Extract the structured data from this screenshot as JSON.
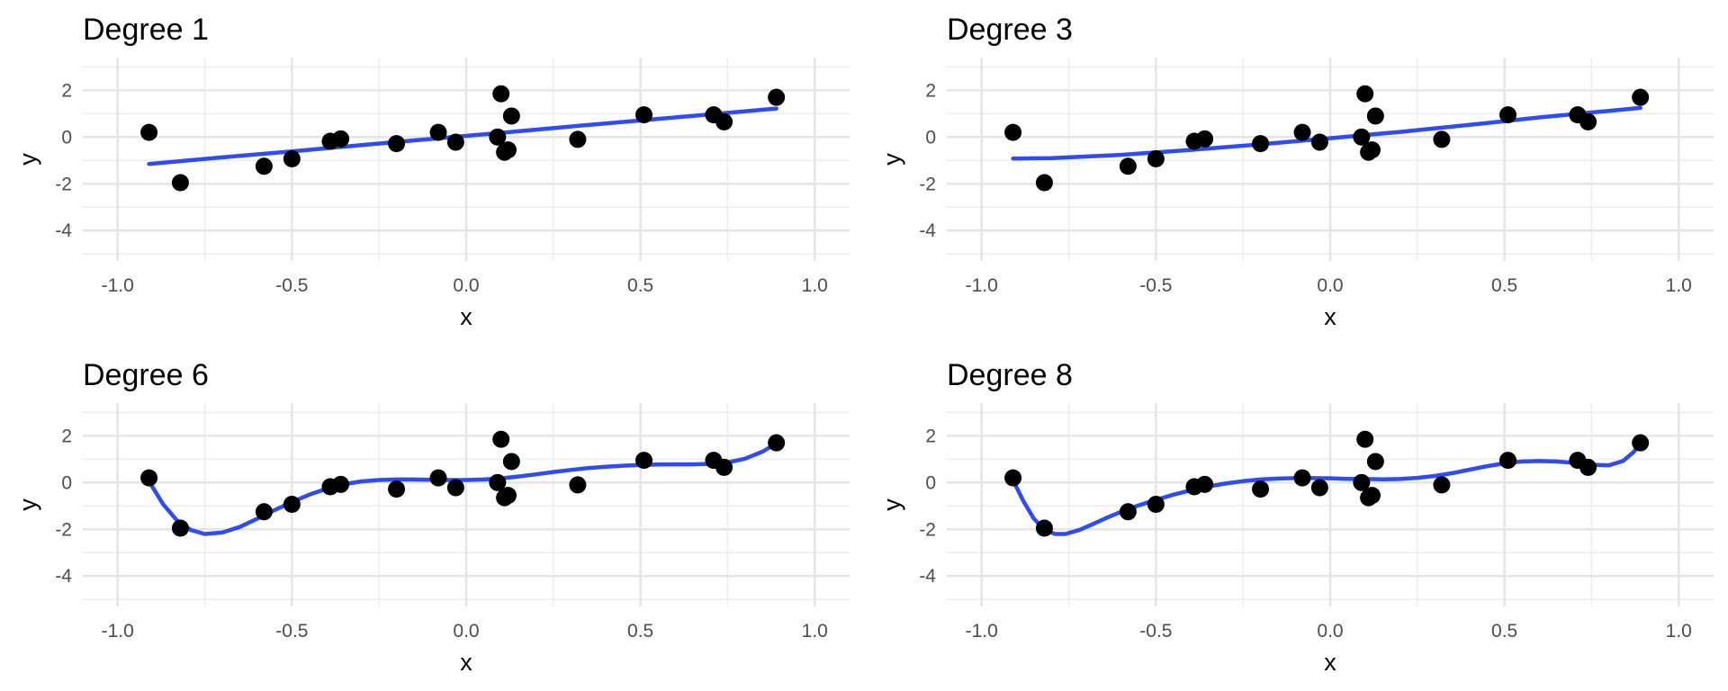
{
  "chart_data": [
    {
      "type": "scatter",
      "title": "Degree 1",
      "xlabel": "x",
      "ylabel": "y",
      "xlim": [
        -1.1,
        1.1
      ],
      "ylim": [
        -5.3,
        3.4
      ],
      "x_ticks": [
        -1.0,
        -0.5,
        0.0,
        0.5,
        1.0
      ],
      "x_tick_labels": [
        "-1.0",
        "-0.5",
        "0.0",
        "0.5",
        "1.0"
      ],
      "y_ticks": [
        -4,
        -2,
        0,
        2
      ],
      "y_tick_labels": [
        "-4",
        "-2",
        "0",
        "2"
      ],
      "grid": true,
      "points": {
        "x": [
          -0.91,
          -0.82,
          -0.58,
          -0.5,
          -0.39,
          -0.36,
          -0.2,
          -0.08,
          -0.03,
          0.09,
          0.1,
          0.11,
          0.12,
          0.13,
          0.32,
          0.51,
          0.71,
          0.74,
          0.89
        ],
        "y": [
          0.2,
          -1.95,
          -1.25,
          -0.93,
          -0.18,
          -0.08,
          -0.28,
          0.2,
          -0.22,
          0.0,
          1.85,
          -0.65,
          -0.55,
          0.9,
          -0.1,
          0.95,
          0.95,
          0.65,
          1.7
        ]
      },
      "fit": {
        "degree": 1,
        "x": [
          -0.91,
          -0.7,
          -0.5,
          -0.3,
          -0.1,
          0.1,
          0.3,
          0.5,
          0.7,
          0.89
        ],
        "y": [
          -1.15,
          -0.87,
          -0.61,
          -0.34,
          -0.08,
          0.18,
          0.45,
          0.71,
          0.97,
          1.22
        ]
      }
    },
    {
      "type": "scatter",
      "title": "Degree 3",
      "xlabel": "x",
      "ylabel": "y",
      "xlim": [
        -1.1,
        1.1
      ],
      "ylim": [
        -5.3,
        3.4
      ],
      "x_ticks": [
        -1.0,
        -0.5,
        0.0,
        0.5,
        1.0
      ],
      "x_tick_labels": [
        "-1.0",
        "-0.5",
        "0.0",
        "0.5",
        "1.0"
      ],
      "y_ticks": [
        -4,
        -2,
        0,
        2
      ],
      "y_tick_labels": [
        "-4",
        "-2",
        "0",
        "2"
      ],
      "grid": true,
      "points": {
        "x": [
          -0.91,
          -0.82,
          -0.58,
          -0.5,
          -0.39,
          -0.36,
          -0.2,
          -0.08,
          -0.03,
          0.09,
          0.1,
          0.11,
          0.12,
          0.13,
          0.32,
          0.51,
          0.71,
          0.74,
          0.89
        ],
        "y": [
          0.2,
          -1.95,
          -1.25,
          -0.93,
          -0.18,
          -0.08,
          -0.28,
          0.2,
          -0.22,
          0.0,
          1.85,
          -0.65,
          -0.55,
          0.9,
          -0.1,
          0.95,
          0.95,
          0.65,
          1.7
        ]
      },
      "fit": {
        "degree": 3,
        "x": [
          -0.91,
          -0.8,
          -0.6,
          -0.4,
          -0.2,
          0.0,
          0.2,
          0.4,
          0.6,
          0.8,
          0.89
        ],
        "y": [
          -0.92,
          -0.9,
          -0.76,
          -0.55,
          -0.31,
          -0.05,
          0.22,
          0.52,
          0.84,
          1.12,
          1.25
        ]
      }
    },
    {
      "type": "scatter",
      "title": "Degree 6",
      "xlabel": "x",
      "ylabel": "y",
      "xlim": [
        -1.1,
        1.1
      ],
      "ylim": [
        -5.3,
        3.4
      ],
      "x_ticks": [
        -1.0,
        -0.5,
        0.0,
        0.5,
        1.0
      ],
      "x_tick_labels": [
        "-1.0",
        "-0.5",
        "0.0",
        "0.5",
        "1.0"
      ],
      "y_ticks": [
        -4,
        -2,
        0,
        2
      ],
      "y_tick_labels": [
        "-4",
        "-2",
        "0",
        "2"
      ],
      "grid": true,
      "points": {
        "x": [
          -0.91,
          -0.82,
          -0.58,
          -0.5,
          -0.39,
          -0.36,
          -0.2,
          -0.08,
          -0.03,
          0.09,
          0.1,
          0.11,
          0.12,
          0.13,
          0.32,
          0.51,
          0.71,
          0.74,
          0.89
        ],
        "y": [
          0.2,
          -1.95,
          -1.25,
          -0.93,
          -0.18,
          -0.08,
          -0.28,
          0.2,
          -0.22,
          0.0,
          1.85,
          -0.65,
          -0.55,
          0.9,
          -0.1,
          0.95,
          0.95,
          0.65,
          1.7
        ]
      },
      "fit": {
        "degree": 6,
        "x": [
          -0.91,
          -0.87,
          -0.83,
          -0.79,
          -0.75,
          -0.7,
          -0.65,
          -0.6,
          -0.55,
          -0.5,
          -0.45,
          -0.4,
          -0.35,
          -0.3,
          -0.25,
          -0.2,
          -0.15,
          -0.1,
          -0.05,
          0.0,
          0.05,
          0.1,
          0.15,
          0.2,
          0.25,
          0.3,
          0.35,
          0.4,
          0.45,
          0.5,
          0.55,
          0.6,
          0.65,
          0.7,
          0.75,
          0.8,
          0.85,
          0.89
        ],
        "y": [
          0.05,
          -0.92,
          -1.62,
          -2.03,
          -2.2,
          -2.14,
          -1.9,
          -1.55,
          -1.18,
          -0.83,
          -0.52,
          -0.26,
          -0.07,
          0.05,
          0.11,
          0.13,
          0.13,
          0.12,
          0.11,
          0.11,
          0.13,
          0.18,
          0.26,
          0.35,
          0.45,
          0.54,
          0.62,
          0.68,
          0.72,
          0.75,
          0.77,
          0.78,
          0.78,
          0.8,
          0.86,
          1.02,
          1.32,
          1.68
        ]
      }
    },
    {
      "type": "scatter",
      "title": "Degree 8",
      "xlabel": "x",
      "ylabel": "y",
      "xlim": [
        -1.1,
        1.1
      ],
      "ylim": [
        -5.3,
        3.4
      ],
      "x_ticks": [
        -1.0,
        -0.5,
        0.0,
        0.5,
        1.0
      ],
      "x_tick_labels": [
        "-1.0",
        "-0.5",
        "0.0",
        "0.5",
        "1.0"
      ],
      "y_ticks": [
        -4,
        -2,
        0,
        2
      ],
      "y_tick_labels": [
        "-4",
        "-2",
        "0",
        "2"
      ],
      "grid": true,
      "points": {
        "x": [
          -0.91,
          -0.82,
          -0.58,
          -0.5,
          -0.39,
          -0.36,
          -0.2,
          -0.08,
          -0.03,
          0.09,
          0.1,
          0.11,
          0.12,
          0.13,
          0.32,
          0.51,
          0.71,
          0.74,
          0.89
        ],
        "y": [
          0.2,
          -1.95,
          -1.25,
          -0.93,
          -0.18,
          -0.08,
          -0.28,
          0.2,
          -0.22,
          0.0,
          1.85,
          -0.65,
          -0.55,
          0.9,
          -0.1,
          0.95,
          0.95,
          0.65,
          1.7
        ]
      },
      "fit": {
        "degree": 8,
        "x": [
          -0.91,
          -0.88,
          -0.85,
          -0.82,
          -0.79,
          -0.76,
          -0.72,
          -0.68,
          -0.64,
          -0.6,
          -0.55,
          -0.5,
          -0.45,
          -0.4,
          -0.35,
          -0.3,
          -0.25,
          -0.2,
          -0.15,
          -0.1,
          -0.05,
          0.0,
          0.05,
          0.1,
          0.15,
          0.2,
          0.25,
          0.3,
          0.35,
          0.4,
          0.45,
          0.5,
          0.55,
          0.6,
          0.65,
          0.7,
          0.75,
          0.8,
          0.84,
          0.87,
          0.89
        ],
        "y": [
          0.1,
          -0.8,
          -1.55,
          -2.0,
          -2.2,
          -2.2,
          -2.03,
          -1.77,
          -1.5,
          -1.25,
          -0.98,
          -0.74,
          -0.52,
          -0.33,
          -0.17,
          -0.04,
          0.06,
          0.13,
          0.17,
          0.19,
          0.19,
          0.18,
          0.16,
          0.15,
          0.14,
          0.15,
          0.2,
          0.28,
          0.4,
          0.55,
          0.7,
          0.82,
          0.9,
          0.92,
          0.9,
          0.84,
          0.76,
          0.74,
          0.92,
          1.3,
          1.68
        ]
      }
    }
  ],
  "colors": {
    "line": "#2f4bf5",
    "point": "#000000",
    "grid_major": "#e5e5e5",
    "grid_minor": "#ededed",
    "tick_text": "#4d4d4d"
  }
}
